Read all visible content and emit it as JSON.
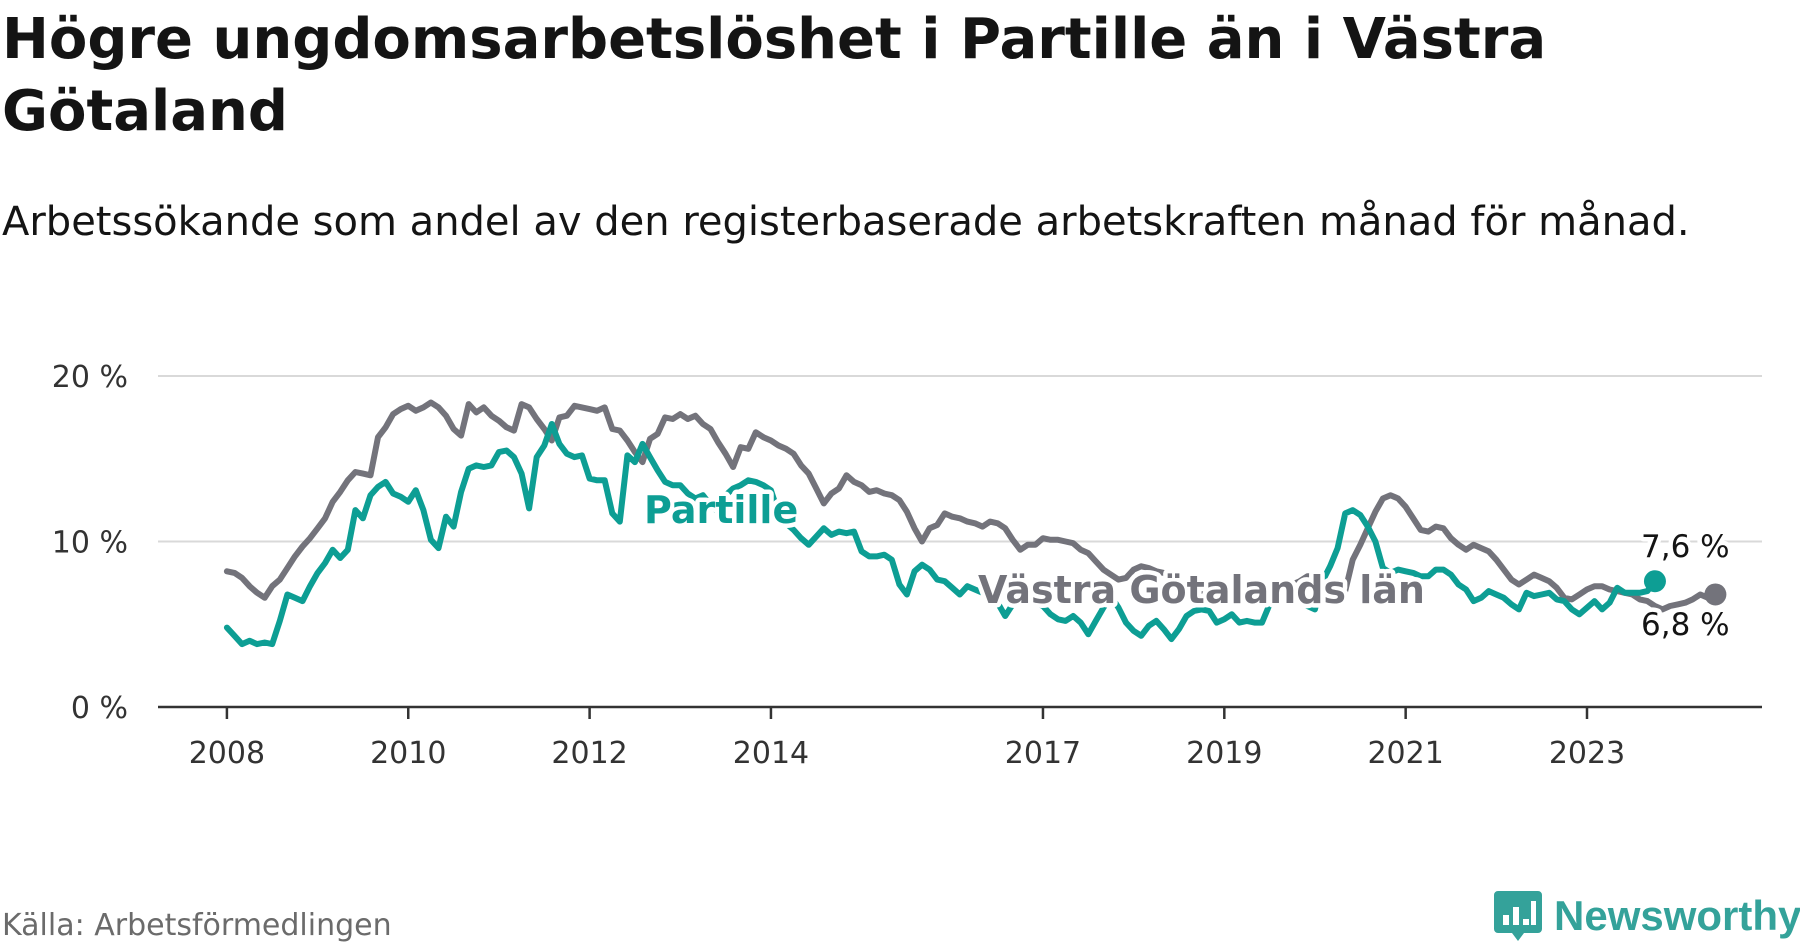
{
  "title": "Högre ungdomsarbetslöshet i Partille än i Västra Götaland",
  "subtitle": "Arbetssökande som andel av den registerbaserade arbetskraften månad för månad.",
  "source": "Källa: Arbetsförmedlingen",
  "brand": {
    "name": "Newsworthy",
    "icon": "newsworthy-logo-icon"
  },
  "colors": {
    "partille": "#0d9e94",
    "vg": "#73737b",
    "grid": "#d9d9d9",
    "axis": "#333333"
  },
  "chart_data": {
    "type": "line",
    "title": "Högre ungdomsarbetslöshet i Partille än i Västra Götaland",
    "xlabel": "",
    "ylabel": "",
    "x_start": 2008.0,
    "x_step": 0.08333,
    "xlim": [
      2007.24,
      2024.93
    ],
    "ylim": [
      0,
      20
    ],
    "yticks": [
      {
        "value": 0,
        "label": "0 %"
      },
      {
        "value": 10,
        "label": "10 %"
      },
      {
        "value": 20,
        "label": "20 %"
      }
    ],
    "xticks": [
      {
        "value": 2008,
        "label": "2008"
      },
      {
        "value": 2010,
        "label": "2010"
      },
      {
        "value": 2012,
        "label": "2012"
      },
      {
        "value": 2014,
        "label": "2014"
      },
      {
        "value": 2017,
        "label": "2017"
      },
      {
        "value": 2019,
        "label": "2019"
      },
      {
        "value": 2021,
        "label": "2021"
      },
      {
        "value": 2023,
        "label": "2023"
      }
    ],
    "series": [
      {
        "name": "Västra Götalands län",
        "label": "Västra Götalands län",
        "end_label": "6,8 %",
        "values": [
          8.2,
          8.1,
          7.8,
          7.3,
          6.9,
          6.6,
          7.3,
          7.7,
          8.4,
          9.1,
          9.7,
          10.2,
          10.8,
          11.4,
          12.4,
          13,
          13.7,
          14.2,
          14.1,
          14,
          16.3,
          16.9,
          17.7,
          18,
          18.2,
          17.9,
          18.1,
          18.4,
          18.1,
          17.6,
          16.8,
          16.4,
          18.3,
          17.8,
          18.1,
          17.6,
          17.3,
          16.9,
          16.7,
          18.3,
          18.1,
          17.4,
          16.8,
          16.1,
          17.5,
          17.6,
          18.2,
          18.1,
          18,
          17.9,
          18.1,
          16.8,
          16.7,
          16.1,
          15.4,
          14.8,
          16.2,
          16.5,
          17.5,
          17.4,
          17.7,
          17.4,
          17.6,
          17.1,
          16.8,
          16,
          15.3,
          14.5,
          15.7,
          15.6,
          16.6,
          16.3,
          16.1,
          15.8,
          15.6,
          15.3,
          14.6,
          14.1,
          13.2,
          12.3,
          12.9,
          13.2,
          14,
          13.6,
          13.4,
          13,
          13.1,
          12.9,
          12.8,
          12.5,
          11.8,
          10.8,
          10,
          10.8,
          11,
          11.7,
          11.5,
          11.4,
          11.2,
          11.1,
          10.9,
          11.2,
          11.1,
          10.8,
          10.1,
          9.5,
          9.8,
          9.8,
          10.2,
          10.1,
          10.1,
          10,
          9.9,
          9.5,
          9.3,
          8.8,
          8.3,
          8,
          7.7,
          7.8,
          8.3,
          8.5,
          8.4,
          8.2,
          8.1,
          7.8,
          7.6,
          7.3,
          7,
          6.8,
          7.2,
          7.3,
          7.1,
          6.8,
          7.2,
          7.1,
          6.9,
          6.7,
          6.5,
          6.9,
          7.1,
          7.4,
          7.6,
          7.9,
          7.9,
          7.8,
          7.4,
          7.2,
          7,
          8.9,
          9.8,
          10.8,
          11.8,
          12.6,
          12.8,
          12.6,
          12.1,
          11.4,
          10.7,
          10.6,
          10.9,
          10.8,
          10.2,
          9.8,
          9.5,
          9.8,
          9.6,
          9.4,
          8.9,
          8.3,
          7.7,
          7.4,
          7.7,
          8,
          7.8,
          7.6,
          7.2,
          6.6,
          6.5,
          6.8,
          7.1,
          7.3,
          7.3,
          7.1,
          7,
          6.9,
          6.8,
          6.5,
          6.4,
          6.1,
          5.9,
          6.1,
          6.2,
          6.3,
          6.5,
          6.8,
          6.6,
          6.8
        ]
      },
      {
        "name": "Partille",
        "label": "Partille",
        "end_label": "7,6 %",
        "values": [
          4.8,
          4.3,
          3.8,
          4,
          3.8,
          3.9,
          3.8,
          5.2,
          6.8,
          6.6,
          6.4,
          7.3,
          8.1,
          8.7,
          9.5,
          9,
          9.5,
          11.9,
          11.4,
          12.8,
          13.3,
          13.6,
          12.9,
          12.7,
          12.4,
          13.1,
          11.9,
          10.1,
          9.6,
          11.5,
          10.9,
          13,
          14.4,
          14.6,
          14.5,
          14.6,
          15.4,
          15.5,
          15.1,
          14.1,
          12,
          15.1,
          15.8,
          17.1,
          15.9,
          15.3,
          15.1,
          15.2,
          13.8,
          13.7,
          13.7,
          11.7,
          11.2,
          15.2,
          14.8,
          15.9,
          15.1,
          14.3,
          13.6,
          13.4,
          13.4,
          12.9,
          12.6,
          12.8,
          12.2,
          11.8,
          12.8,
          13.2,
          13.4,
          13.7,
          13.6,
          13.4,
          13.1,
          11.7,
          11.1,
          10.7,
          10.2,
          9.8,
          10.3,
          10.8,
          10.4,
          10.6,
          10.5,
          10.6,
          9.4,
          9.1,
          9.1,
          9.2,
          8.9,
          7.4,
          6.8,
          8.2,
          8.6,
          8.3,
          7.7,
          7.6,
          7.2,
          6.8,
          7.3,
          7.1,
          6.9,
          6.7,
          6.3,
          5.5,
          6.2,
          6.8,
          6.6,
          6.3,
          6.1,
          5.6,
          5.3,
          5.2,
          5.5,
          5.1,
          4.4,
          5.2,
          6,
          6.7,
          6,
          5.1,
          4.6,
          4.3,
          4.9,
          5.2,
          4.7,
          4.1,
          4.7,
          5.5,
          5.8,
          5.9,
          5.8,
          5.1,
          5.3,
          5.6,
          5.1,
          5.2,
          5.1,
          5.1,
          6.2,
          6.6,
          6.9,
          6.8,
          6.5,
          6.1,
          5.9,
          7.6,
          8.5,
          9.6,
          11.7,
          11.9,
          11.6,
          10.9,
          10,
          8.4,
          8.1,
          8.3,
          8.2,
          8.1,
          7.9,
          7.9,
          8.3,
          8.3,
          8,
          7.4,
          7.1,
          6.4,
          6.6,
          7,
          6.8,
          6.6,
          6.2,
          5.9,
          6.9,
          6.7,
          6.8,
          6.9,
          6.5,
          6.4,
          5.9,
          5.6,
          6,
          6.4,
          5.9,
          6.3,
          7.2,
          6.9,
          6.9,
          6.9,
          7,
          7.6
        ]
      }
    ]
  }
}
